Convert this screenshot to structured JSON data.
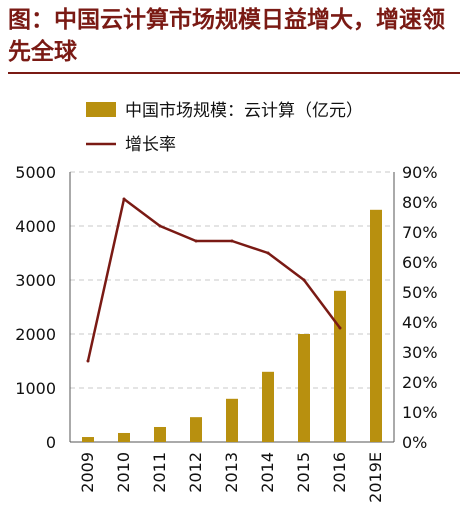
{
  "page": {
    "title": "图：中国云计算市场规模日益增大，增速领先全球"
  },
  "chart_data": {
    "type": "bar",
    "categories": [
      "2009",
      "2010",
      "2011",
      "2012",
      "2013",
      "2014",
      "2015",
      "2016",
      "2019E"
    ],
    "series": [
      {
        "name": "中国市场规模：云计算（亿元）",
        "type": "bar",
        "axis": "left",
        "color": "#B8900F",
        "values": [
          92,
          167,
          278,
          460,
          800,
          1300,
          2000,
          2800,
          4300
        ]
      },
      {
        "name": "增长率",
        "type": "line",
        "axis": "right",
        "color": "#7A1A14",
        "values": [
          0.27,
          0.81,
          0.72,
          0.67,
          0.67,
          0.63,
          0.54,
          0.38,
          null
        ]
      }
    ],
    "y_left": {
      "ylim": [
        0,
        5000
      ],
      "ticks": [
        "0",
        "1000",
        "2000",
        "3000",
        "4000",
        "5000"
      ]
    },
    "y_right": {
      "ylim": [
        0,
        0.9
      ],
      "ticks": [
        "0%",
        "10%",
        "20%",
        "30%",
        "40%",
        "50%",
        "60%",
        "70%",
        "80%",
        "90%"
      ]
    },
    "grid": true,
    "legend_position": "top-left"
  }
}
